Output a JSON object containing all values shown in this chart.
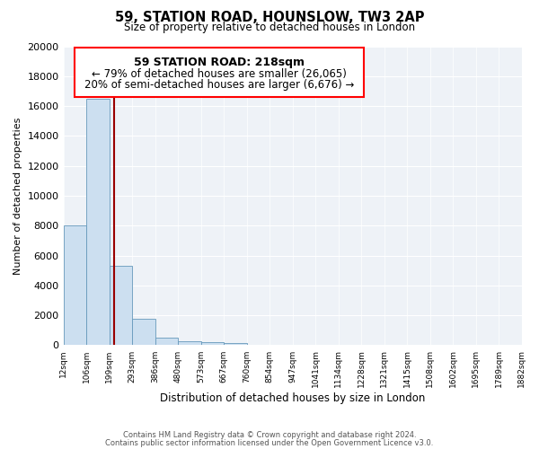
{
  "title_line1": "59, STATION ROAD, HOUNSLOW, TW3 2AP",
  "title_line2": "Size of property relative to detached houses in London",
  "xlabel": "Distribution of detached houses by size in London",
  "ylabel": "Number of detached properties",
  "bar_color": "#ccdff0",
  "bar_edge_color": "#6699bb",
  "property_line_x": 218,
  "property_line_color": "#990000",
  "annotation_title": "59 STATION ROAD: 218sqm",
  "annotation_line1": "← 79% of detached houses are smaller (26,065)",
  "annotation_line2": "20% of semi-detached houses are larger (6,676) →",
  "bin_edges": [
    12,
    106,
    199,
    293,
    386,
    480,
    573,
    667,
    760,
    854,
    947,
    1041,
    1134,
    1228,
    1321,
    1415,
    1508,
    1602,
    1695,
    1789,
    1882
  ],
  "bar_heights": [
    8000,
    16500,
    5300,
    1750,
    500,
    250,
    200,
    150,
    0,
    0,
    0,
    0,
    0,
    0,
    0,
    0,
    0,
    0,
    0,
    0
  ],
  "ylim": [
    0,
    20000
  ],
  "yticks": [
    0,
    2000,
    4000,
    6000,
    8000,
    10000,
    12000,
    14000,
    16000,
    18000,
    20000
  ],
  "footer_line1": "Contains HM Land Registry data © Crown copyright and database right 2024.",
  "footer_line2": "Contains public sector information licensed under the Open Government Licence v3.0.",
  "bg_color": "#eef2f7"
}
